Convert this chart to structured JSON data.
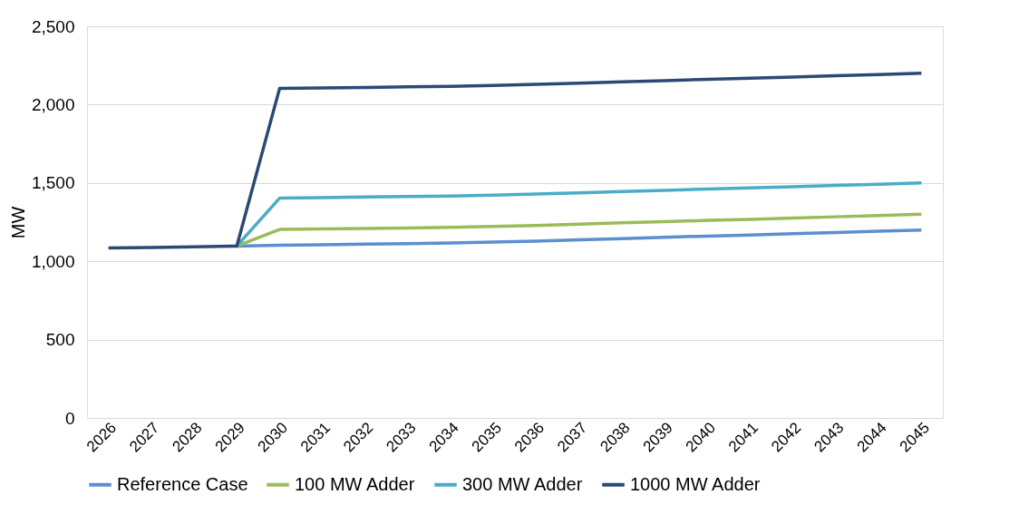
{
  "chart_data": {
    "type": "line",
    "ylabel": "MW",
    "categories": [
      "2026",
      "2027",
      "2028",
      "2029",
      "2030",
      "2031",
      "2032",
      "2033",
      "2034",
      "2035",
      "2036",
      "2037",
      "2038",
      "2039",
      "2040",
      "2041",
      "2042",
      "2043",
      "2044",
      "2045"
    ],
    "series": [
      {
        "name": "Reference Case",
        "color": "#5b8fd0",
        "values": [
          null,
          null,
          null,
          1097,
          1103,
          1106,
          1110,
          1113,
          1117,
          1122,
          1129,
          1137,
          1145,
          1153,
          1161,
          1168,
          1176,
          1184,
          1192,
          1200
        ]
      },
      {
        "name": "100 MW Adder",
        "color": "#9bbb59",
        "values": [
          null,
          null,
          null,
          1097,
          1203,
          1206,
          1210,
          1213,
          1217,
          1222,
          1229,
          1237,
          1245,
          1253,
          1261,
          1268,
          1276,
          1284,
          1292,
          1300
        ]
      },
      {
        "name": "300 MW Adder",
        "color": "#4bacc6",
        "values": [
          null,
          null,
          null,
          1097,
          1403,
          1406,
          1410,
          1413,
          1417,
          1422,
          1429,
          1437,
          1445,
          1453,
          1461,
          1468,
          1476,
          1484,
          1492,
          1500
        ]
      },
      {
        "name": "1000 MW Adder",
        "color": "#2b4a73",
        "values": [
          1085,
          1088,
          1092,
          1097,
          2103,
          2106,
          2110,
          2113,
          2117,
          2122,
          2129,
          2137,
          2145,
          2153,
          2161,
          2168,
          2176,
          2184,
          2192,
          2200
        ]
      }
    ],
    "ylim": [
      0,
      2500
    ],
    "yticks": [
      0,
      500,
      {
        "value": 1000,
        "label": "1,000"
      },
      {
        "value": 1500,
        "label": "1,500"
      },
      {
        "value": 2000,
        "label": "2,000"
      },
      {
        "value": 2500,
        "label": "2,500"
      }
    ],
    "grid": "y",
    "legend": "bottom",
    "marker": "none",
    "line_style": "solid"
  }
}
